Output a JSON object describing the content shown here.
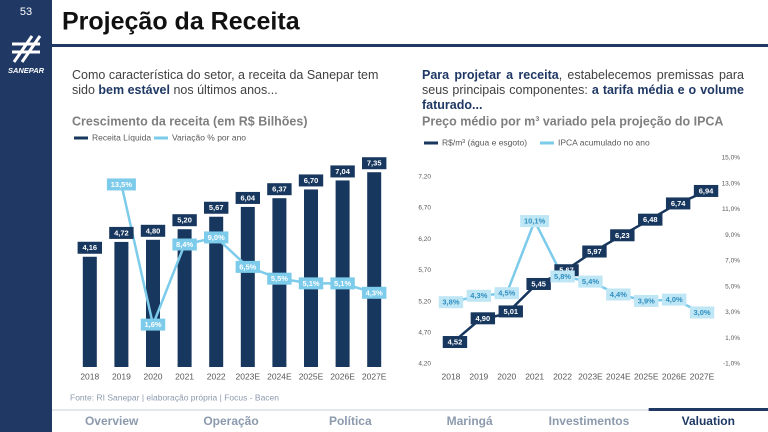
{
  "slide_number": "53",
  "logo": "SANEPAR",
  "title": "Projeção da Receita",
  "intro_left": [
    {
      "text": "Como característica do setor, a receita da Sanepar tem sido ",
      "bold": false
    },
    {
      "text": "bem estável",
      "bold": true
    },
    {
      "text": " nos últimos anos...",
      "bold": false
    }
  ],
  "intro_right": [
    {
      "text": "Para projetar a receita",
      "bold": true
    },
    {
      "text": ", estabelecemos premissas para seus principais componentes: ",
      "bold": false
    },
    {
      "text": "a tarifa média e o volume faturado...",
      "bold": true
    }
  ],
  "chart_data": [
    {
      "type": "combo",
      "title": "Crescimento da receita (em R$ Bilhões)",
      "categories": [
        "2018",
        "2019",
        "2020",
        "2021",
        "2022",
        "2023E",
        "2024E",
        "2025E",
        "2026E",
        "2027E"
      ],
      "series": [
        {
          "name": "Receita Líquida",
          "type": "bar",
          "color": "#17375e",
          "values": [
            4.16,
            4.72,
            4.8,
            5.2,
            5.67,
            6.04,
            6.37,
            6.7,
            7.04,
            7.35
          ],
          "value_labels": [
            "4,16",
            "4,72",
            "4,80",
            "5,20",
            "5,67",
            "6,04",
            "6,37",
            "6,70",
            "7,04",
            "7,35"
          ]
        },
        {
          "name": "Variação % por ano",
          "type": "line",
          "axis": "y2",
          "color": "#7ccbea",
          "values": [
            null,
            13.5,
            1.6,
            8.4,
            9.0,
            6.5,
            5.5,
            5.1,
            5.1,
            4.3
          ],
          "value_labels": [
            null,
            "13,5%",
            "1,6%",
            "8,4%",
            "9,0%",
            "6,5%",
            "5,5%",
            "5,1%",
            "5,1%",
            "4,3%"
          ]
        }
      ],
      "ylim": [
        0,
        8
      ],
      "y2lim": [
        -2,
        16
      ]
    },
    {
      "type": "line",
      "title": "Preço médio por m³ variado pela projeção do IPCA",
      "categories": [
        "2018",
        "2019",
        "2020",
        "2021",
        "2022",
        "2023E",
        "2024E",
        "2025E",
        "2026E",
        "2027E"
      ],
      "series": [
        {
          "name": "R$/m³ (água e esgoto)",
          "type": "line",
          "color": "#17375e",
          "values": [
            4.52,
            4.9,
            5.01,
            5.45,
            5.67,
            5.97,
            6.23,
            6.48,
            6.74,
            6.94
          ],
          "value_labels": [
            "4,52",
            "4,90",
            "5,01",
            "5,45",
            "5,67",
            "5,97",
            "6,23",
            "6,48",
            "6,74",
            "6,94"
          ]
        },
        {
          "name": "IPCA acumulado no ano",
          "type": "line",
          "axis": "y2",
          "color": "#7ccbea",
          "values": [
            3.8,
            4.3,
            4.5,
            10.1,
            5.8,
            5.4,
            4.4,
            3.9,
            4.0,
            3.0
          ],
          "value_labels": [
            "3,8%",
            "4,3%",
            "4,5%",
            "10,1%",
            "5,8%",
            "5,4%",
            "4,4%",
            "3,9%",
            "4,0%",
            "3,0%"
          ]
        }
      ],
      "ylim": [
        4.2,
        7.5
      ],
      "yticks": [
        {
          "value": 4.2,
          "label": "4,20"
        },
        {
          "value": 4.7,
          "label": "4,70"
        },
        {
          "value": 5.2,
          "label": "5,20"
        },
        {
          "value": 5.7,
          "label": "5,70"
        },
        {
          "value": 6.2,
          "label": "6,20"
        },
        {
          "value": 6.7,
          "label": "6,70"
        },
        {
          "value": 7.2,
          "label": "7,20"
        }
      ],
      "y2lim": [
        -1,
        15
      ],
      "y2ticks": [
        {
          "value": -1,
          "label": "-1,0%"
        },
        {
          "value": 1,
          "label": "1,0%"
        },
        {
          "value": 3,
          "label": "3,0%"
        },
        {
          "value": 5,
          "label": "5,0%"
        },
        {
          "value": 7,
          "label": "7,0%"
        },
        {
          "value": 9,
          "label": "9,0%"
        },
        {
          "value": 11,
          "label": "11,0%"
        },
        {
          "value": 13,
          "label": "13,0%"
        },
        {
          "value": 15,
          "label": "15,0%"
        }
      ]
    }
  ],
  "source": "Fonte: RI Sanepar | elaboração própria | Focus - Bacen",
  "nav": {
    "items": [
      "Overview",
      "Operação",
      "Política",
      "Maringá",
      "Investimentos",
      "Valuation"
    ],
    "active": 5
  }
}
